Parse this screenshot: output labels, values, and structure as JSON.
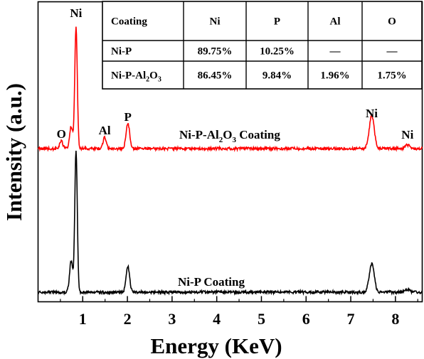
{
  "chart_data": {
    "type": "line",
    "xlabel": "Energy (KeV)",
    "ylabel": "Intensity (a.u.)",
    "xlim": [
      0.0,
      8.6
    ],
    "x_ticks": [
      "1",
      "2",
      "3",
      "4",
      "5",
      "6",
      "7",
      "8"
    ],
    "grid": false,
    "series": [
      {
        "name": "Ni-P-Al2O3 Coating",
        "color": "#ff0000",
        "peaks": [
          {
            "energy": 0.52,
            "height": 0.06,
            "width": 0.035
          },
          {
            "energy": 0.74,
            "height": 0.18,
            "width": 0.035
          },
          {
            "energy": 0.85,
            "height": 1.0,
            "width": 0.028
          },
          {
            "energy": 1.49,
            "height": 0.09,
            "width": 0.035
          },
          {
            "energy": 2.01,
            "height": 0.21,
            "width": 0.04
          },
          {
            "energy": 7.47,
            "height": 0.27,
            "width": 0.055
          },
          {
            "energy": 8.27,
            "height": 0.03,
            "width": 0.05
          }
        ],
        "peak_labels": [
          {
            "text": "O",
            "energy": 0.52
          },
          {
            "text": "Ni",
            "energy": 0.85
          },
          {
            "text": "Al",
            "energy": 1.49
          },
          {
            "text": "P",
            "energy": 2.01
          },
          {
            "text": "Ni",
            "energy": 7.47
          },
          {
            "text": "Ni",
            "energy": 8.27
          }
        ]
      },
      {
        "name": "Ni-P Coating",
        "color": "#000000",
        "peaks": [
          {
            "energy": 0.74,
            "height": 0.22,
            "width": 0.035
          },
          {
            "energy": 0.85,
            "height": 1.0,
            "width": 0.028
          },
          {
            "energy": 2.01,
            "height": 0.18,
            "width": 0.04
          },
          {
            "energy": 7.47,
            "height": 0.2,
            "width": 0.055
          },
          {
            "energy": 8.27,
            "height": 0.02,
            "width": 0.05
          }
        ],
        "peak_labels": []
      }
    ],
    "series_labels": {
      "red": {
        "pre": "Ni-P-Al",
        "sub1": "2",
        "mid": "O",
        "sub2": "3",
        "post": " Coating"
      },
      "black": "Ni-P Coating"
    },
    "table": {
      "headers": [
        "Coating",
        "Ni",
        "P",
        "Al",
        "O"
      ],
      "rows": [
        {
          "coating": {
            "pre": "Ni-P"
          },
          "values": [
            "89.75%",
            "10.25%",
            "—",
            "—"
          ]
        },
        {
          "coating": {
            "pre": "Ni-P-Al",
            "sub1": "2",
            "mid": "O",
            "sub2": "3"
          },
          "values": [
            "86.45%",
            "9.84%",
            "1.96%",
            "1.75%"
          ]
        }
      ]
    }
  }
}
